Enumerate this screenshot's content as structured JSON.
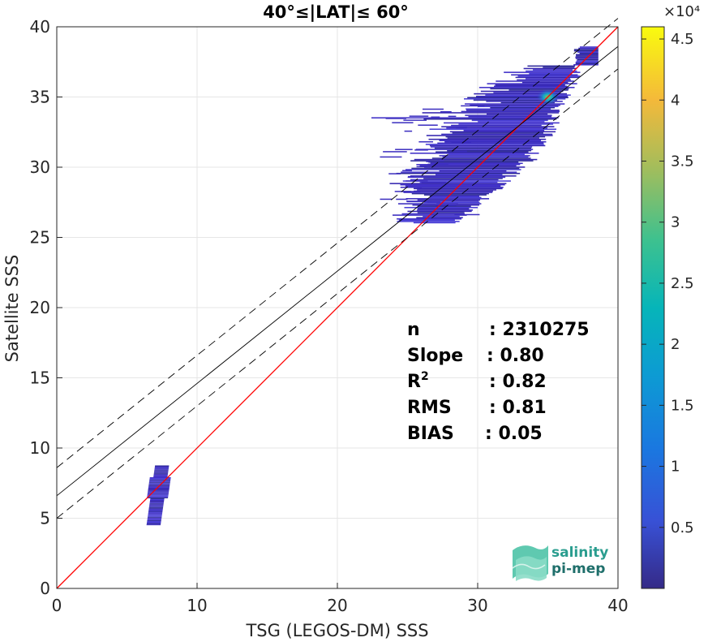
{
  "chart_data": {
    "type": "scatter",
    "subtype": "density-histogram",
    "title": "40°≤|LAT|≤ 60°",
    "xlabel": "TSG (LEGOS-DM) SSS",
    "ylabel": "Satellite SSS",
    "xlim": [
      0,
      40
    ],
    "ylim": [
      0,
      40
    ],
    "xticks": [
      0,
      10,
      20,
      30,
      40
    ],
    "yticks": [
      0,
      5,
      10,
      15,
      20,
      25,
      30,
      35,
      40
    ],
    "grid": true,
    "colorbar": {
      "label_exponent": "×10⁴",
      "ticks": [
        "0.5",
        "1",
        "1.5",
        "2",
        "2.5",
        "3",
        "3.5",
        "4",
        "4.5"
      ],
      "tick_values": [
        0.5,
        1,
        1.5,
        2,
        2.5,
        3,
        3.5,
        4,
        4.5
      ],
      "range": [
        0,
        4.6
      ],
      "colormap": "parula"
    },
    "lines": [
      {
        "kind": "identity",
        "color": "#ff0000",
        "points": [
          [
            0,
            0
          ],
          [
            40,
            40
          ]
        ]
      },
      {
        "kind": "regression",
        "color": "#000000",
        "dash": "solid",
        "points": [
          [
            0,
            6.6
          ],
          [
            40,
            38.6
          ]
        ]
      },
      {
        "kind": "regression-upper",
        "color": "#000000",
        "dash": "dashed",
        "points": [
          [
            0,
            8.6
          ],
          [
            40,
            40.6
          ]
        ]
      },
      {
        "kind": "regression-lower",
        "color": "#000000",
        "dash": "dashed",
        "points": [
          [
            0,
            5.0
          ],
          [
            40,
            37.0
          ]
        ]
      }
    ],
    "clusters": [
      {
        "name": "main",
        "x_range": [
          22,
          39
        ],
        "y_range": [
          26,
          39
        ],
        "peak": [
          35,
          35
        ]
      },
      {
        "name": "low",
        "x_range": [
          6,
          8
        ],
        "y_range": [
          4.5,
          8.7
        ],
        "peak": [
          7,
          6.8
        ]
      }
    ],
    "stats": [
      {
        "label": "n",
        "value": ": 2310275"
      },
      {
        "label": "Slope",
        "value": ": 0.80"
      },
      {
        "label": "R",
        "sup": "2",
        "value": ": 0.82"
      },
      {
        "label": "RMS",
        "value": ": 0.81"
      },
      {
        "label": "BIAS",
        "value": ": 0.05"
      }
    ]
  },
  "logo": {
    "line1": "salinity",
    "line2": "pi-mep"
  }
}
